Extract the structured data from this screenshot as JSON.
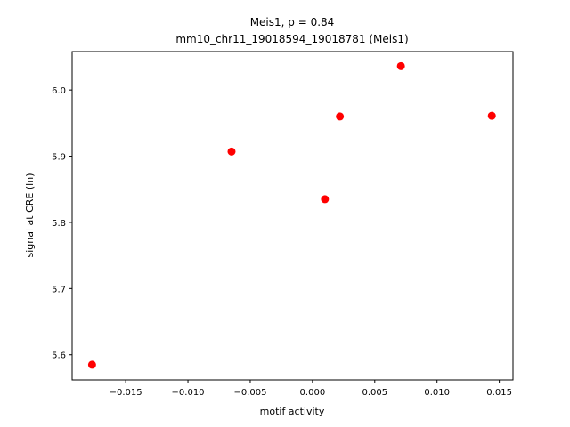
{
  "chart_data": {
    "type": "scatter",
    "title": "Meis1, ρ = 0.84",
    "subtitle": "mm10_chr11_19018594_19018781 (Meis1)",
    "x_label": "motif activity",
    "y_label": "signal at CRE (ln)",
    "color": "#ff0000",
    "x": [
      -0.0177,
      -0.0065,
      0.001,
      0.0022,
      0.0071,
      0.0144
    ],
    "values": [
      5.585,
      5.907,
      5.835,
      5.96,
      6.036,
      5.961
    ],
    "xlim": [
      -0.0193,
      0.0161
    ],
    "ylim": [
      5.562,
      6.058
    ],
    "xticks": [
      {
        "value": -0.015,
        "label": "−0.015"
      },
      {
        "value": -0.01,
        "label": "−0.010"
      },
      {
        "value": -0.005,
        "label": "−0.005"
      },
      {
        "value": 0,
        "label": "0.000"
      },
      0.005,
      {
        "value": 0.01,
        "label": "0.010"
      },
      0.015
    ],
    "yticks": [
      5.6,
      5.7,
      5.8,
      5.9,
      {
        "value": 6,
        "label": "6.0"
      }
    ],
    "grid": false
  }
}
